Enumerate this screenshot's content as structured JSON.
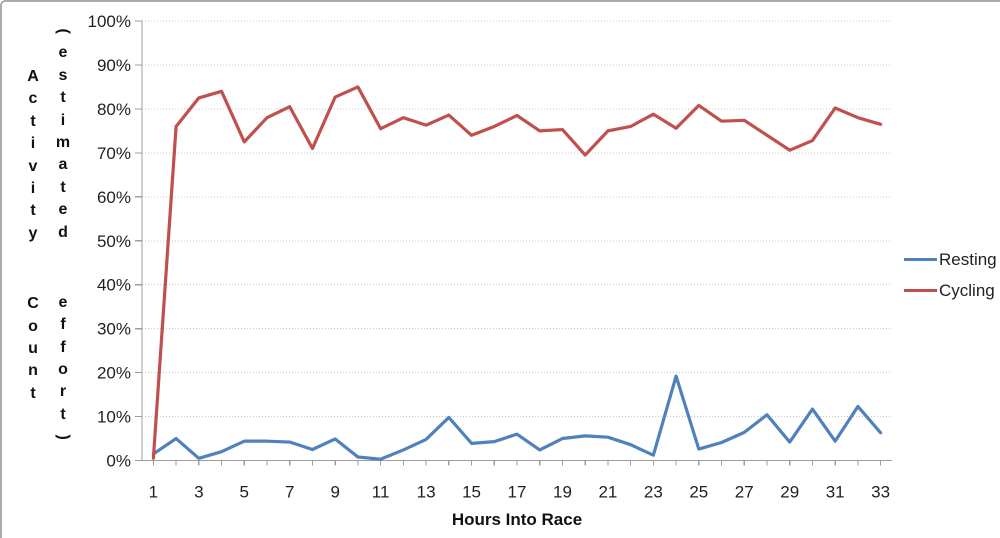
{
  "chart_data": {
    "type": "line",
    "title": "",
    "xlabel": "Hours Into Race",
    "ylabel": "Activity Count (estimated effort)",
    "ylabel_line1": "Activity Count",
    "ylabel_line2": "(estimated effort)",
    "x": [
      1,
      2,
      3,
      4,
      5,
      6,
      7,
      8,
      9,
      10,
      11,
      12,
      13,
      14,
      15,
      16,
      17,
      18,
      19,
      20,
      21,
      22,
      23,
      24,
      25,
      26,
      27,
      28,
      29,
      30,
      31,
      32,
      33
    ],
    "x_label_interval": 2,
    "x_tick_labels": [
      "1",
      "3",
      "5",
      "7",
      "9",
      "11",
      "13",
      "15",
      "17",
      "19",
      "21",
      "23",
      "25",
      "27",
      "29",
      "31",
      "33"
    ],
    "ylim": [
      0,
      100
    ],
    "y_ticks": [
      0,
      10,
      20,
      30,
      40,
      50,
      60,
      70,
      80,
      90,
      100
    ],
    "y_tick_suffix": "%",
    "grid": "horizontal-dotted",
    "legend_position": "right",
    "series": [
      {
        "name": "Resting",
        "color": "#4F81BD",
        "values": [
          1.5,
          5,
          0.5,
          2,
          4.4,
          4.4,
          4.2,
          2.5,
          4.9,
          0.8,
          0.3,
          2.4,
          4.8,
          9.8,
          3.9,
          4.3,
          6,
          2.4,
          5,
          5.6,
          5.3,
          3.6,
          1.2,
          19.2,
          2.6,
          4.1,
          6.4,
          10.4,
          4.2,
          11.7,
          4.4,
          12.3,
          6.3
        ]
      },
      {
        "name": "Cycling",
        "color": "#C0504D",
        "values": [
          0.5,
          76,
          82.5,
          84,
          72.5,
          78,
          80.5,
          71,
          82.7,
          85,
          75.5,
          78,
          76.3,
          78.6,
          74,
          76,
          78.5,
          75,
          75.3,
          69.5,
          75,
          76,
          78.8,
          75.6,
          80.8,
          77.2,
          77.4,
          74,
          70.6,
          72.8,
          80.2,
          78,
          76.5
        ]
      }
    ]
  }
}
